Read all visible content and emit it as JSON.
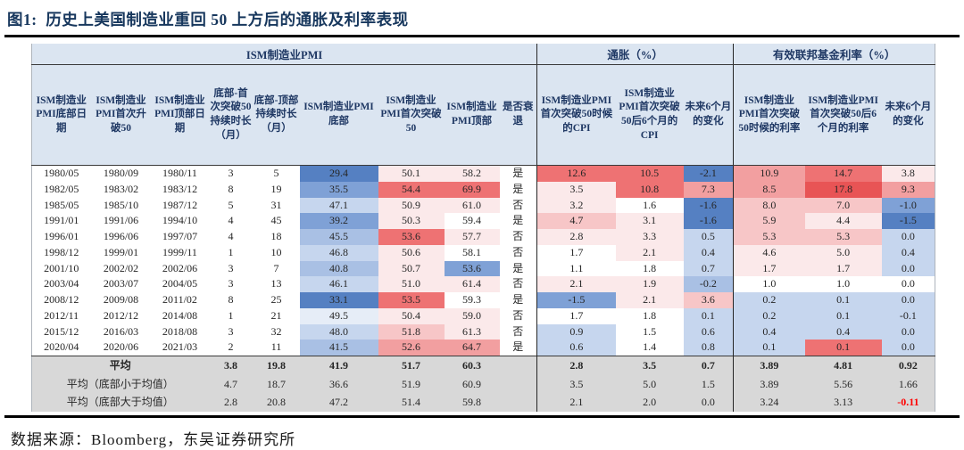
{
  "title": "图1:  历史上美国制造业重回 50 上方后的通胀及利率表现",
  "source": "数据来源：Bloomberg，东吴证券研究所",
  "accent_colors": {
    "title_navy": "#17375D",
    "header_blue_bg": "#dbe5f1",
    "summary_grey_bg": "#d8d8d8",
    "negative_red_text": "#fe0000"
  },
  "palette": {
    "b4": "#5580c2",
    "b3": "#7fa1d6",
    "b2": "#a9c0e4",
    "b1": "#c6d6ee",
    "b0": "#e6edf7",
    "w": "#ffffff",
    "r0": "#fbe9ea",
    "r1": "#f7c6c7",
    "r2": "#f29fa0",
    "r3": "#ee7273",
    "r4": "#e85455"
  },
  "table": {
    "groups": [
      {
        "label": "ISM制造业PMI",
        "span": 9
      },
      {
        "label": "通胀（%）",
        "span": 3
      },
      {
        "label": "有效联邦基金利率（%）",
        "span": 3
      }
    ],
    "columns": [
      "ISM制造业PMI底部日期",
      "ISM制造业PMI首次升破50",
      "ISM制造业PMI顶部日期",
      "底部-首次突破50持续时长（月）",
      "底部-顶部持续时长（月）",
      "ISM制造业PMI底部",
      "ISM制造业PMI首次突破50",
      "ISM制造业PMI顶部",
      "是否衰退",
      "ISM制造业PMI首次突破50时候的CPI",
      "ISM制造业PMI首次突破50后6个月的CPI",
      "未来6个月的变化",
      "ISM制造业PMI首次突破50时候的利率",
      "ISM制造业PMI首次突破50后6个月的利率",
      "未来6个月的变化"
    ],
    "rows": [
      [
        {
          "v": "1980/05"
        },
        {
          "v": "1980/09"
        },
        {
          "v": "1980/11"
        },
        {
          "v": "3"
        },
        {
          "v": "5"
        },
        {
          "v": "29.4",
          "bg": "b4"
        },
        {
          "v": "50.1",
          "bg": "r0"
        },
        {
          "v": "58.2",
          "bg": "r0"
        },
        {
          "v": "是"
        },
        {
          "v": "12.6",
          "bg": "r3"
        },
        {
          "v": "10.5",
          "bg": "r3"
        },
        {
          "v": "-2.1",
          "bg": "b4"
        },
        {
          "v": "10.9",
          "bg": "r2"
        },
        {
          "v": "14.7",
          "bg": "r3"
        },
        {
          "v": "3.8",
          "bg": "r0"
        }
      ],
      [
        {
          "v": "1982/05"
        },
        {
          "v": "1983/02"
        },
        {
          "v": "1983/12"
        },
        {
          "v": "8"
        },
        {
          "v": "19"
        },
        {
          "v": "35.5",
          "bg": "b3"
        },
        {
          "v": "54.4",
          "bg": "r3"
        },
        {
          "v": "69.9",
          "bg": "r3"
        },
        {
          "v": "是"
        },
        {
          "v": "3.5",
          "bg": "r0"
        },
        {
          "v": "10.8",
          "bg": "r3"
        },
        {
          "v": "7.3",
          "bg": "r2"
        },
        {
          "v": "8.5",
          "bg": "r2"
        },
        {
          "v": "17.8",
          "bg": "r4"
        },
        {
          "v": "9.3",
          "bg": "r2"
        }
      ],
      [
        {
          "v": "1985/05"
        },
        {
          "v": "1985/10"
        },
        {
          "v": "1987/12"
        },
        {
          "v": "5"
        },
        {
          "v": "31"
        },
        {
          "v": "47.1",
          "bg": "b1"
        },
        {
          "v": "50.9",
          "bg": "r0"
        },
        {
          "v": "61.0",
          "bg": "r0"
        },
        {
          "v": "否"
        },
        {
          "v": "3.2",
          "bg": "r0"
        },
        {
          "v": "1.6",
          "bg": "w"
        },
        {
          "v": "-1.6",
          "bg": "b4"
        },
        {
          "v": "8.0",
          "bg": "r1"
        },
        {
          "v": "7.0",
          "bg": "r1"
        },
        {
          "v": "-1.0",
          "bg": "b3"
        }
      ],
      [
        {
          "v": "1991/01"
        },
        {
          "v": "1991/06"
        },
        {
          "v": "1994/10"
        },
        {
          "v": "4"
        },
        {
          "v": "45"
        },
        {
          "v": "39.2",
          "bg": "b3"
        },
        {
          "v": "50.3",
          "bg": "r0"
        },
        {
          "v": "59.4",
          "bg": "w"
        },
        {
          "v": "是"
        },
        {
          "v": "4.7",
          "bg": "r1"
        },
        {
          "v": "3.1",
          "bg": "r0"
        },
        {
          "v": "-1.6",
          "bg": "b4"
        },
        {
          "v": "5.9",
          "bg": "r1"
        },
        {
          "v": "4.4",
          "bg": "r0"
        },
        {
          "v": "-1.5",
          "bg": "b4"
        }
      ],
      [
        {
          "v": "1996/01"
        },
        {
          "v": "1996/06"
        },
        {
          "v": "1997/07"
        },
        {
          "v": "4"
        },
        {
          "v": "18"
        },
        {
          "v": "45.5",
          "bg": "b2"
        },
        {
          "v": "53.6",
          "bg": "r3"
        },
        {
          "v": "57.7",
          "bg": "r0"
        },
        {
          "v": "否"
        },
        {
          "v": "2.8",
          "bg": "r0"
        },
        {
          "v": "3.3",
          "bg": "r0"
        },
        {
          "v": "0.5",
          "bg": "b1"
        },
        {
          "v": "5.3",
          "bg": "r1"
        },
        {
          "v": "5.3",
          "bg": "r1"
        },
        {
          "v": "0.0",
          "bg": "b1"
        }
      ],
      [
        {
          "v": "1998/12"
        },
        {
          "v": "1999/01"
        },
        {
          "v": "1999/11"
        },
        {
          "v": "1"
        },
        {
          "v": "10"
        },
        {
          "v": "46.8",
          "bg": "b1"
        },
        {
          "v": "50.6",
          "bg": "r0"
        },
        {
          "v": "58.1",
          "bg": "w"
        },
        {
          "v": "否"
        },
        {
          "v": "1.7",
          "bg": "w"
        },
        {
          "v": "2.1",
          "bg": "r0"
        },
        {
          "v": "0.4",
          "bg": "b1"
        },
        {
          "v": "4.6",
          "bg": "r0"
        },
        {
          "v": "5.0",
          "bg": "r0"
        },
        {
          "v": "0.4",
          "bg": "b1"
        }
      ],
      [
        {
          "v": "2001/10"
        },
        {
          "v": "2002/02"
        },
        {
          "v": "2002/06"
        },
        {
          "v": "3"
        },
        {
          "v": "7"
        },
        {
          "v": "40.8",
          "bg": "b2"
        },
        {
          "v": "50.7",
          "bg": "r0"
        },
        {
          "v": "53.6",
          "bg": "b3"
        },
        {
          "v": "是"
        },
        {
          "v": "1.1",
          "bg": "w"
        },
        {
          "v": "1.8",
          "bg": "w"
        },
        {
          "v": "0.7",
          "bg": "b1"
        },
        {
          "v": "1.7",
          "bg": "r0"
        },
        {
          "v": "1.7",
          "bg": "r0"
        },
        {
          "v": "0.0",
          "bg": "b1"
        }
      ],
      [
        {
          "v": "2003/04"
        },
        {
          "v": "2003/07"
        },
        {
          "v": "2004/05"
        },
        {
          "v": "3"
        },
        {
          "v": "13"
        },
        {
          "v": "46.1",
          "bg": "b1"
        },
        {
          "v": "51.0",
          "bg": "r0"
        },
        {
          "v": "61.4",
          "bg": "r0"
        },
        {
          "v": "否"
        },
        {
          "v": "2.1",
          "bg": "r0"
        },
        {
          "v": "1.9",
          "bg": "r0"
        },
        {
          "v": "-0.2",
          "bg": "b2"
        },
        {
          "v": "1.0",
          "bg": "w"
        },
        {
          "v": "1.0",
          "bg": "w"
        },
        {
          "v": "0.0",
          "bg": "w"
        }
      ],
      [
        {
          "v": "2008/12"
        },
        {
          "v": "2009/08"
        },
        {
          "v": "2011/02"
        },
        {
          "v": "8"
        },
        {
          "v": "25"
        },
        {
          "v": "33.1",
          "bg": "b4"
        },
        {
          "v": "53.5",
          "bg": "r3"
        },
        {
          "v": "59.3",
          "bg": "w"
        },
        {
          "v": "是"
        },
        {
          "v": "-1.5",
          "bg": "b3"
        },
        {
          "v": "2.1",
          "bg": "r0"
        },
        {
          "v": "3.6",
          "bg": "r1"
        },
        {
          "v": "0.2",
          "bg": "b1"
        },
        {
          "v": "0.1",
          "bg": "b1"
        },
        {
          "v": "0.0",
          "bg": "b1"
        }
      ],
      [
        {
          "v": "2012/11"
        },
        {
          "v": "2012/12"
        },
        {
          "v": "2014/08"
        },
        {
          "v": "1"
        },
        {
          "v": "21"
        },
        {
          "v": "49.5",
          "bg": "b0"
        },
        {
          "v": "50.4",
          "bg": "r0"
        },
        {
          "v": "59.0",
          "bg": "r0"
        },
        {
          "v": "否"
        },
        {
          "v": "1.7",
          "bg": "w"
        },
        {
          "v": "1.8",
          "bg": "w"
        },
        {
          "v": "0.1",
          "bg": "b1"
        },
        {
          "v": "0.2",
          "bg": "b1"
        },
        {
          "v": "0.1",
          "bg": "b1"
        },
        {
          "v": "-0.1",
          "bg": "b1"
        }
      ],
      [
        {
          "v": "2015/12"
        },
        {
          "v": "2016/03"
        },
        {
          "v": "2018/08"
        },
        {
          "v": "3"
        },
        {
          "v": "32"
        },
        {
          "v": "48.0",
          "bg": "b1"
        },
        {
          "v": "51.8",
          "bg": "r1"
        },
        {
          "v": "61.3",
          "bg": "r0"
        },
        {
          "v": "否"
        },
        {
          "v": "0.9",
          "bg": "b1"
        },
        {
          "v": "1.5",
          "bg": "w"
        },
        {
          "v": "0.6",
          "bg": "b1"
        },
        {
          "v": "0.4",
          "bg": "b1"
        },
        {
          "v": "0.4",
          "bg": "b1"
        },
        {
          "v": "0.0",
          "bg": "b1"
        }
      ],
      [
        {
          "v": "2020/04"
        },
        {
          "v": "2020/06"
        },
        {
          "v": "2021/03"
        },
        {
          "v": "2"
        },
        {
          "v": "11"
        },
        {
          "v": "41.5",
          "bg": "b2"
        },
        {
          "v": "52.6",
          "bg": "r2"
        },
        {
          "v": "64.7",
          "bg": "r2"
        },
        {
          "v": "是"
        },
        {
          "v": "0.6",
          "bg": "b1"
        },
        {
          "v": "1.4",
          "bg": "w"
        },
        {
          "v": "0.8",
          "bg": "b1"
        },
        {
          "v": "0.1",
          "bg": "b1"
        },
        {
          "v": "0.1",
          "bg": "r3"
        },
        {
          "v": "0.0",
          "bg": "b1"
        }
      ]
    ],
    "summary": [
      {
        "label": "平均",
        "bold": true,
        "cells": [
          {
            "v": "3.8"
          },
          {
            "v": "19.8"
          },
          {
            "v": "41.9"
          },
          {
            "v": "51.7"
          },
          {
            "v": "60.3"
          },
          {
            "v": ""
          },
          {
            "v": "2.8"
          },
          {
            "v": "3.5"
          },
          {
            "v": "0.7"
          },
          {
            "v": "3.89"
          },
          {
            "v": "4.81"
          },
          {
            "v": "0.92"
          }
        ]
      },
      {
        "label": "平均（底部小于均值）",
        "bold": false,
        "cells": [
          {
            "v": "4.7"
          },
          {
            "v": "18.7"
          },
          {
            "v": "36.6"
          },
          {
            "v": "51.9"
          },
          {
            "v": "60.9"
          },
          {
            "v": ""
          },
          {
            "v": "3.5"
          },
          {
            "v": "5.0"
          },
          {
            "v": "1.5"
          },
          {
            "v": "3.89"
          },
          {
            "v": "5.56"
          },
          {
            "v": "1.66"
          }
        ]
      },
      {
        "label": "平均（底部大于均值）",
        "bold": false,
        "cells": [
          {
            "v": "2.8"
          },
          {
            "v": "20.8"
          },
          {
            "v": "47.2"
          },
          {
            "v": "51.4"
          },
          {
            "v": "59.8"
          },
          {
            "v": ""
          },
          {
            "v": "2.1"
          },
          {
            "v": "2.0"
          },
          {
            "v": "0.0"
          },
          {
            "v": "3.24"
          },
          {
            "v": "3.13"
          },
          {
            "v": "-0.11",
            "red": true
          }
        ]
      }
    ]
  }
}
